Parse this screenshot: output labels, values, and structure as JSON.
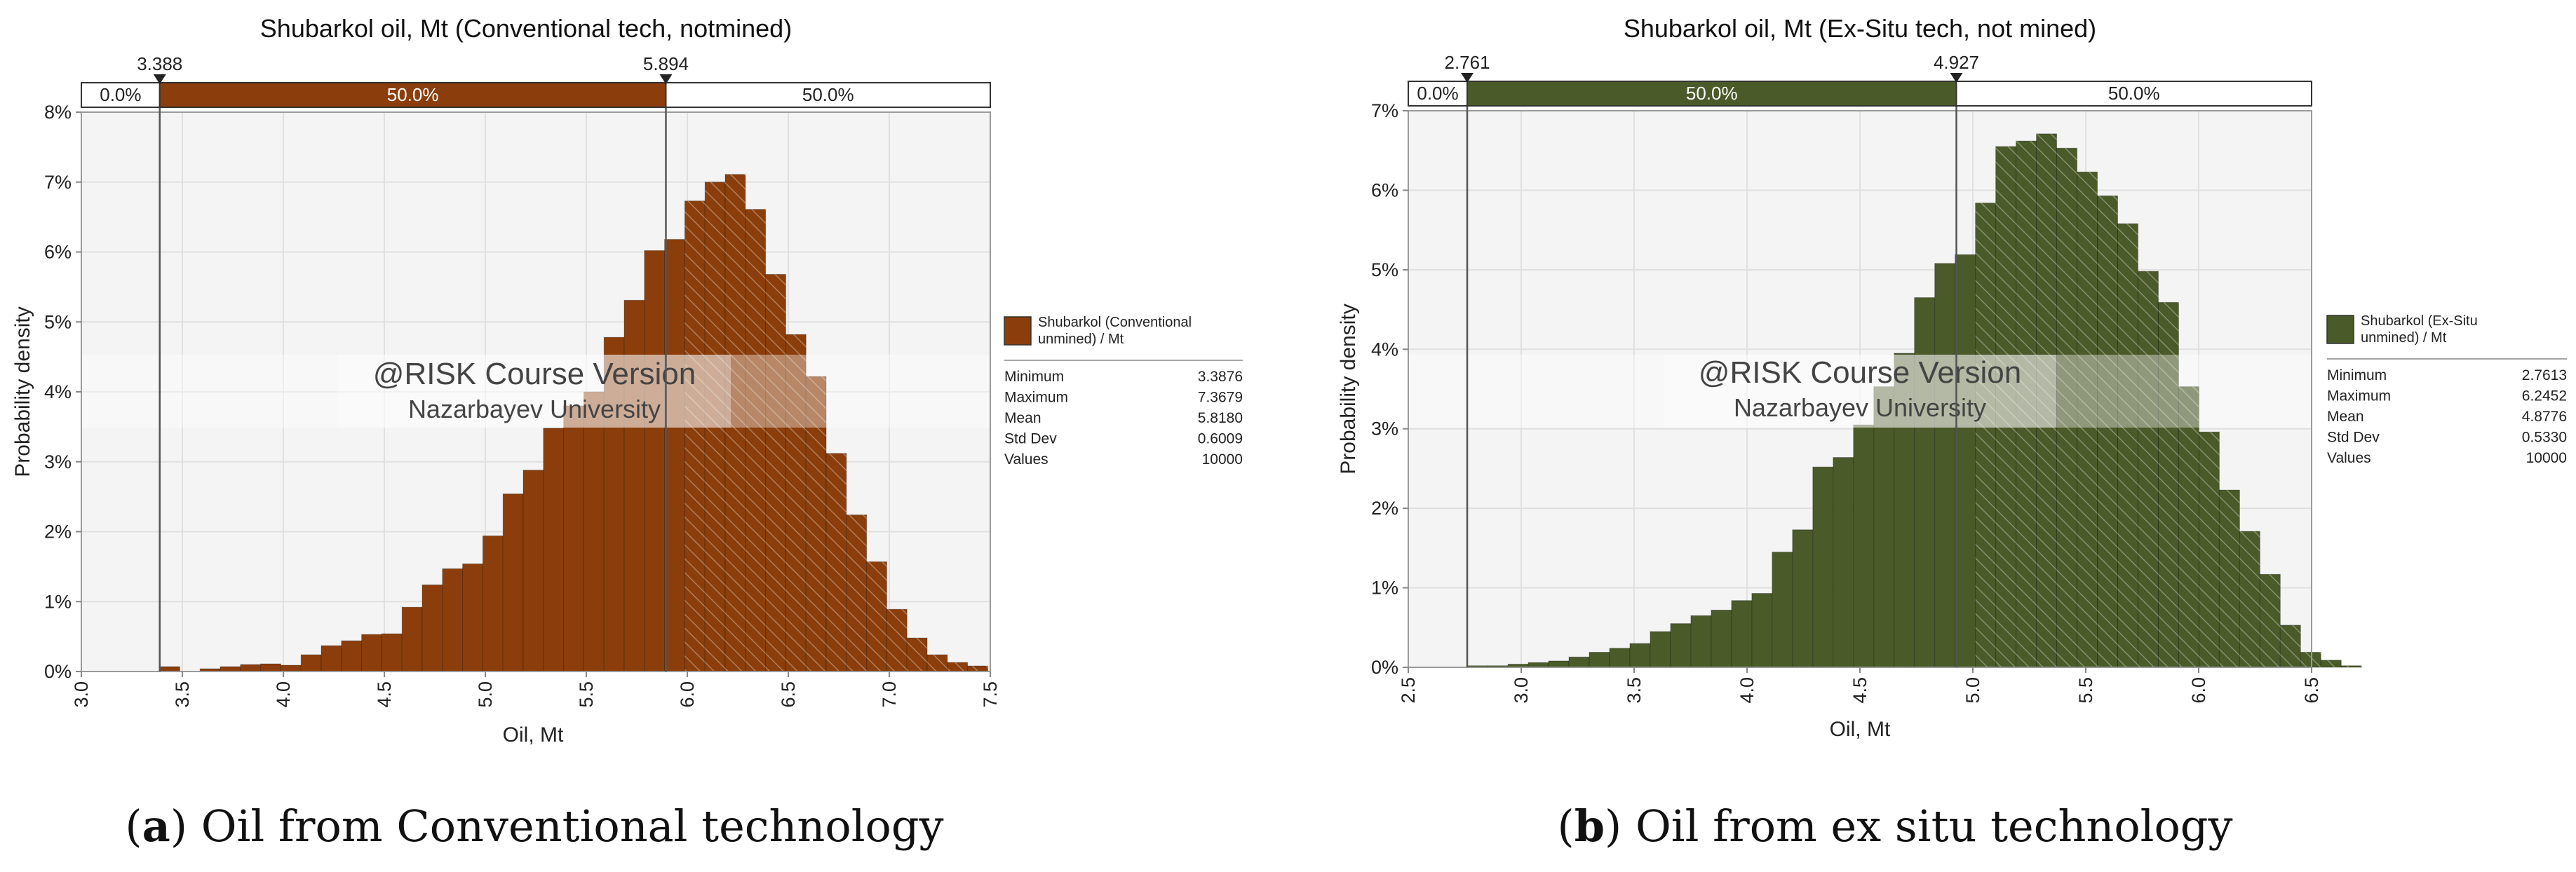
{
  "chart_data": [
    {
      "type": "bar",
      "title": "Shubarkol oil, Mt (Conventional tech, notmined)",
      "xlabel": "Oil, Mt",
      "ylabel": "Probability density",
      "xlim": [
        3.0,
        7.5
      ],
      "ylim": [
        0,
        8
      ],
      "x_ticks": [
        3.0,
        3.5,
        4.0,
        4.5,
        5.0,
        5.5,
        6.0,
        6.5,
        7.0,
        7.5
      ],
      "x_tick_labels": [
        "3.0",
        "3.5",
        "4.0",
        "4.5",
        "5.0",
        "5.5",
        "6.0",
        "6.5",
        "7.0",
        "7.5"
      ],
      "y_ticks": [
        0,
        1,
        2,
        3,
        4,
        5,
        6,
        7,
        8
      ],
      "y_tick_labels": [
        "0%",
        "1%",
        "2%",
        "3%",
        "4%",
        "5%",
        "6%",
        "7%",
        "8%"
      ],
      "bin_start": 3.3876,
      "bin_width": 0.1,
      "values": [
        0.07,
        0.0,
        0.04,
        0.07,
        0.1,
        0.11,
        0.09,
        0.24,
        0.37,
        0.44,
        0.53,
        0.54,
        0.92,
        1.24,
        1.47,
        1.54,
        1.94,
        2.54,
        2.88,
        3.48,
        3.8,
        4.0,
        4.78,
        5.31,
        6.02,
        6.18,
        6.73,
        7.0,
        7.11,
        6.61,
        5.68,
        4.82,
        4.22,
        3.12,
        2.24,
        1.57,
        0.89,
        0.48,
        0.24,
        0.13,
        0.08
      ],
      "color": "#8b3e0b",
      "delimiters": {
        "left": {
          "x": 3.388,
          "label": "3.388"
        },
        "right": {
          "x": 5.894,
          "label": "5.894"
        }
      },
      "percent_bar": [
        "0.0%",
        "50.0%",
        "50.0%"
      ],
      "legend": {
        "title": "Shubarkol (Conventional unmined) / Mt",
        "title_lines": [
          "Shubarkol (Conventional",
          "unmined) / Mt"
        ],
        "rows": [
          {
            "label": "Minimum",
            "value": "3.3876"
          },
          {
            "label": "Maximum",
            "value": "7.3679"
          },
          {
            "label": "Mean",
            "value": "5.8180"
          },
          {
            "label": "Std Dev",
            "value": "0.6009"
          },
          {
            "label": "Values",
            "value": "10000"
          }
        ]
      },
      "watermark": {
        "line1": "@RISK Course Version",
        "line2": "Nazarbayev University"
      },
      "caption": {
        "letter": "a",
        "text": "Oil from Conventional technology"
      }
    },
    {
      "type": "bar",
      "title": "Shubarkol  oil, Mt (Ex-Situ tech, not mined)",
      "xlabel": "Oil, Mt",
      "ylabel": "Probability density",
      "xlim": [
        2.5,
        6.5
      ],
      "ylim": [
        0,
        7
      ],
      "x_ticks": [
        2.5,
        3.0,
        3.5,
        4.0,
        4.5,
        5.0,
        5.5,
        6.0,
        6.5
      ],
      "x_tick_labels": [
        "2.5",
        "3.0",
        "3.5",
        "4.0",
        "4.5",
        "5.0",
        "5.5",
        "6.0",
        "6.5"
      ],
      "y_ticks": [
        0,
        1,
        2,
        3,
        4,
        5,
        6,
        7
      ],
      "y_tick_labels": [
        "0%",
        "1%",
        "2%",
        "3%",
        "4%",
        "5%",
        "6%",
        "7%"
      ],
      "bin_start": 2.7613,
      "bin_width": 0.09,
      "values": [
        0.02,
        0.02,
        0.04,
        0.06,
        0.08,
        0.13,
        0.19,
        0.24,
        0.3,
        0.45,
        0.55,
        0.65,
        0.72,
        0.84,
        0.93,
        1.45,
        1.73,
        2.52,
        2.64,
        3.05,
        3.53,
        3.95,
        4.65,
        5.08,
        5.19,
        5.84,
        6.55,
        6.62,
        6.71,
        6.53,
        6.23,
        5.93,
        5.58,
        4.98,
        4.59,
        3.53,
        2.96,
        2.23,
        1.71,
        1.17,
        0.53,
        0.19,
        0.09,
        0.02
      ],
      "color": "#4b5a29",
      "delimiters": {
        "left": {
          "x": 2.761,
          "label": "2.761"
        },
        "right": {
          "x": 4.927,
          "label": "4.927"
        }
      },
      "percent_bar": [
        "0.0%",
        "50.0%",
        "50.0%"
      ],
      "legend": {
        "title": "Shubarkol (Ex-Situ unmined) / Mt",
        "title_lines": [
          "Shubarkol (Ex-Situ",
          "unmined) / Mt"
        ],
        "rows": [
          {
            "label": "Minimum",
            "value": "2.7613"
          },
          {
            "label": "Maximum",
            "value": "6.2452"
          },
          {
            "label": "Mean",
            "value": "4.8776"
          },
          {
            "label": "Std Dev",
            "value": "0.5330"
          },
          {
            "label": "Values",
            "value": "10000"
          }
        ]
      },
      "watermark": {
        "line1": "@RISK Course Version",
        "line2": "Nazarbayev University"
      },
      "caption": {
        "letter": "b",
        "text": "Oil from ex situ technology"
      }
    }
  ]
}
